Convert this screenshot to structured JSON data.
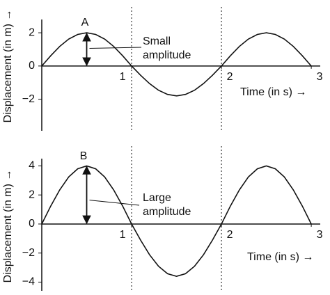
{
  "chart_data": [
    {
      "type": "line",
      "x_label": "Time (in s) →",
      "y_label": "Displacement (in m) →",
      "annotations": [
        "A",
        "Small",
        "amplitude"
      ],
      "xlim": [
        0,
        3.1
      ],
      "xticks": [
        1,
        2,
        3
      ],
      "vlines": [
        1,
        2
      ],
      "ylim": [
        -3.9,
        2.8
      ],
      "yticks": [
        2,
        0,
        {
          "value": -2,
          "label": "−2"
        }
      ],
      "x": [
        0,
        0.1,
        0.2,
        0.3,
        0.4,
        0.5,
        0.6,
        0.7,
        0.8,
        0.9,
        1,
        1.1,
        1.2,
        1.3,
        1.4,
        1.5,
        1.6,
        1.7,
        1.8,
        1.9,
        2,
        2.1,
        2.2,
        2.3,
        2.4,
        2.5,
        2.6,
        2.7,
        2.8,
        2.9,
        3
      ],
      "series": [
        {
          "color": "#111111",
          "values": [
            0,
            0.62,
            1.18,
            1.62,
            1.9,
            2,
            1.9,
            1.62,
            1.18,
            0.62,
            0,
            -0.56,
            -1.06,
            -1.46,
            -1.71,
            -1.8,
            -1.71,
            -1.46,
            -1.06,
            -0.56,
            0,
            0.62,
            1.18,
            1.62,
            1.9,
            2,
            1.9,
            1.62,
            1.18,
            0.62,
            0
          ]
        }
      ]
    },
    {
      "type": "line",
      "x_label": "Time (in s) →",
      "y_label": "Displacement (in m) →",
      "annotations": [
        "B",
        "Large",
        "amplitude"
      ],
      "xlim": [
        0,
        3.1
      ],
      "xticks": [
        1,
        2,
        3
      ],
      "vlines": [
        1,
        2
      ],
      "ylim": [
        -4.6,
        4.5
      ],
      "yticks": [
        4,
        2,
        0,
        {
          "value": -2,
          "label": "−2"
        },
        {
          "value": -4,
          "label": "−4"
        }
      ],
      "x": [
        0,
        0.1,
        0.2,
        0.3,
        0.4,
        0.5,
        0.6,
        0.7,
        0.8,
        0.9,
        1,
        1.1,
        1.2,
        1.3,
        1.4,
        1.5,
        1.6,
        1.7,
        1.8,
        1.9,
        2,
        2.1,
        2.2,
        2.3,
        2.4,
        2.5,
        2.6,
        2.7,
        2.8,
        2.9,
        3
      ],
      "series": [
        {
          "color": "#111111",
          "values": [
            0,
            1.24,
            2.35,
            3.24,
            3.8,
            4,
            3.8,
            3.24,
            2.35,
            1.24,
            0,
            -1.11,
            -2.12,
            -2.91,
            -3.42,
            -3.6,
            -3.42,
            -2.91,
            -2.12,
            -1.11,
            0,
            1.24,
            2.35,
            3.24,
            3.8,
            4,
            3.8,
            3.24,
            2.35,
            1.24,
            0
          ]
        }
      ]
    }
  ]
}
